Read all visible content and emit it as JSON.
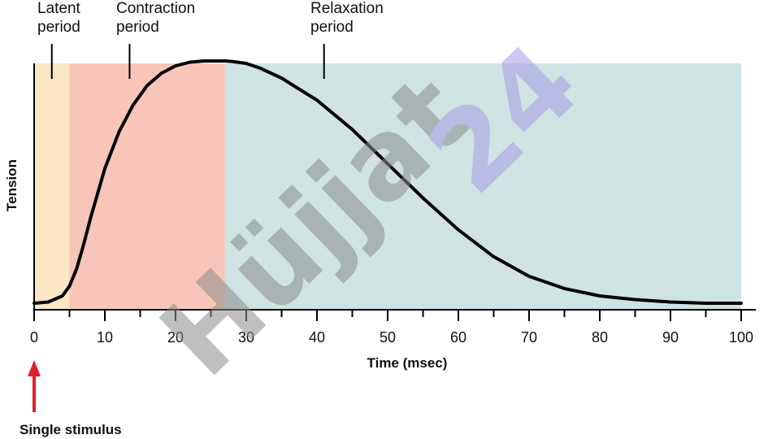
{
  "chart_data": {
    "type": "area",
    "xlabel": "Time (msec)",
    "ylabel": "Tension",
    "xlim": [
      0,
      100
    ],
    "x_ticks": [
      0,
      10,
      20,
      30,
      40,
      50,
      60,
      70,
      80,
      90,
      100
    ],
    "x_tick_labels": [
      "0",
      "10",
      "20",
      "30",
      "40",
      "50",
      "60",
      "70",
      "80",
      "90",
      "100"
    ],
    "grid": false,
    "phases": [
      {
        "label_line1": "Latent",
        "label_line2": "period",
        "start": 0,
        "end": 5,
        "marker_x": 2.5,
        "color": "#fbe7c4"
      },
      {
        "label_line1": "Contraction",
        "label_line2": "period",
        "start": 5,
        "end": 27,
        "marker_x": 13.5,
        "color": "#f7c6b8"
      },
      {
        "label_line1": "Relaxation",
        "label_line2": "period",
        "start": 27,
        "end": 100,
        "marker_x": 41,
        "color": "#cfe3e3"
      }
    ],
    "series": [
      {
        "x": [
          0,
          2,
          4,
          5,
          6,
          7,
          8,
          10,
          12,
          14,
          16,
          18,
          20,
          22,
          24,
          26,
          27,
          28,
          30,
          32,
          35,
          40,
          45,
          50,
          55,
          60,
          65,
          70,
          75,
          80,
          85,
          90,
          95,
          100
        ],
        "values": [
          0.01,
          0.015,
          0.04,
          0.08,
          0.15,
          0.25,
          0.36,
          0.56,
          0.71,
          0.82,
          0.9,
          0.95,
          0.98,
          0.995,
          1.0,
          1.0,
          1.0,
          0.998,
          0.99,
          0.97,
          0.93,
          0.84,
          0.72,
          0.58,
          0.44,
          0.31,
          0.2,
          0.12,
          0.07,
          0.04,
          0.025,
          0.015,
          0.01,
          0.01
        ],
        "color": "#000000"
      }
    ],
    "annotation": {
      "text": "Single stimulus",
      "x": 0,
      "arrow_color": "#e0202a"
    }
  },
  "watermark": {
    "text_main": "Hüjjat",
    "text_num": "24"
  }
}
